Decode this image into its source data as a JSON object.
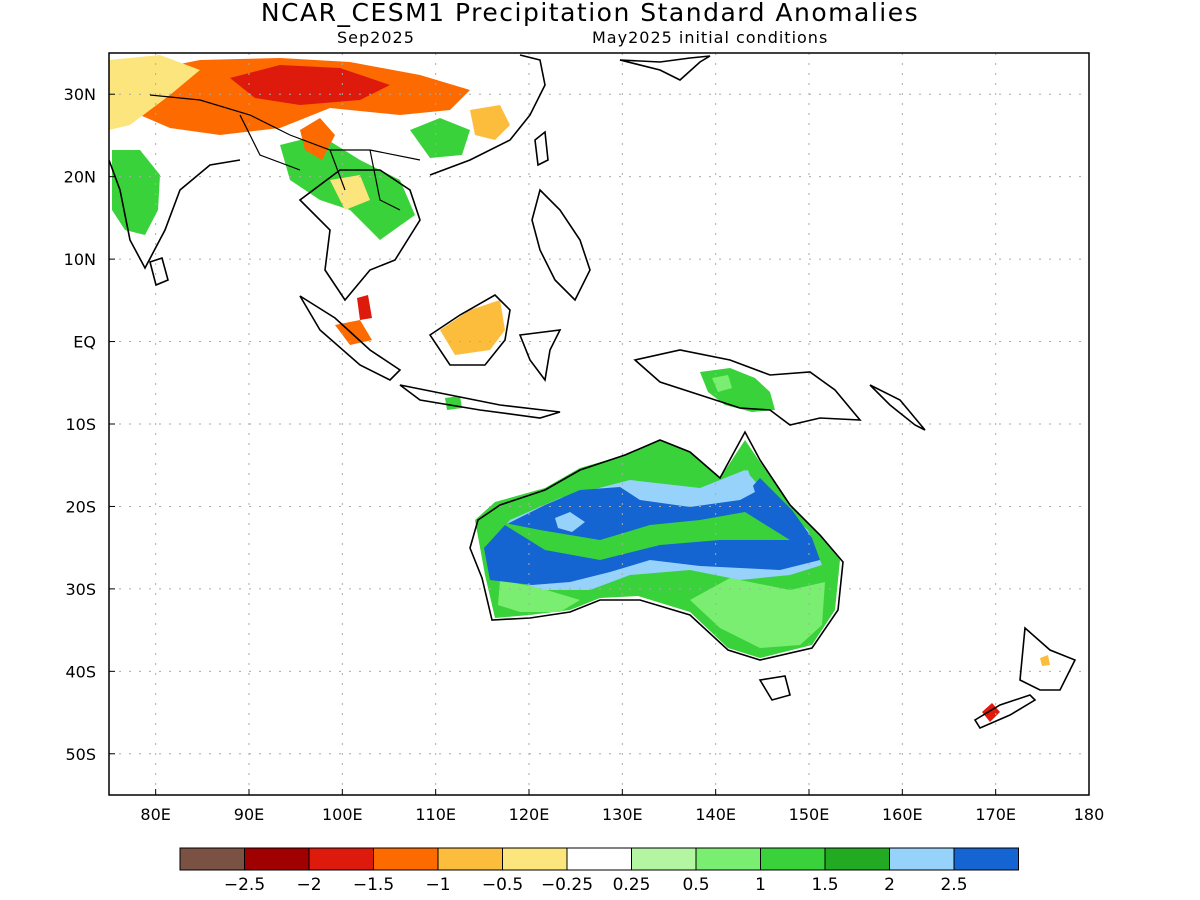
{
  "title": "NCAR_CESM1 Precipitation Standard Anomalies",
  "subtitle_left": "Sep2025",
  "subtitle_right": "May2025 initial conditions",
  "map": {
    "lon_range": [
      75,
      180
    ],
    "lat_range": [
      -55,
      35
    ],
    "lon_ticks": [
      {
        "value": 80,
        "label": "80E"
      },
      {
        "value": 90,
        "label": "90E"
      },
      {
        "value": 100,
        "label": "100E"
      },
      {
        "value": 110,
        "label": "110E"
      },
      {
        "value": 120,
        "label": "120E"
      },
      {
        "value": 130,
        "label": "130E"
      },
      {
        "value": 140,
        "label": "140E"
      },
      {
        "value": 150,
        "label": "150E"
      },
      {
        "value": 160,
        "label": "160E"
      },
      {
        "value": 170,
        "label": "170E"
      },
      {
        "value": 180,
        "label": "180"
      }
    ],
    "lat_ticks": [
      {
        "value": 30,
        "label": "30N"
      },
      {
        "value": 20,
        "label": "20N"
      },
      {
        "value": 10,
        "label": "10N"
      },
      {
        "value": 0,
        "label": "EQ"
      },
      {
        "value": -10,
        "label": "10S"
      },
      {
        "value": -20,
        "label": "20S"
      },
      {
        "value": -30,
        "label": "30S"
      },
      {
        "value": -40,
        "label": "40S"
      },
      {
        "value": -50,
        "label": "50S"
      }
    ],
    "colors": {
      "lt_m2_5": "#7a5244",
      "m2_5": "#a00000",
      "m2": "#dd1a0c",
      "m1_5": "#fd6a00",
      "m1": "#fdbd3c",
      "m0_5": "#fde57d",
      "neutral": "#ffffff",
      "p0_25": "#b4f5a2",
      "p0_5": "#7aee70",
      "p1": "#3ad23a",
      "p1_5": "#22aa22",
      "p2": "#96d2fa",
      "p2_5": "#1464d2"
    }
  },
  "colorbar": {
    "colors": [
      "#7a5244",
      "#a00000",
      "#dd1a0c",
      "#fd6a00",
      "#fdbd3c",
      "#fde57d",
      "#ffffff",
      "#b4f5a2",
      "#7aee70",
      "#3ad23a",
      "#22aa22",
      "#96d2fa",
      "#1464d2"
    ],
    "labels": [
      "−2.5",
      "−2",
      "−1.5",
      "−1",
      "−0.5",
      "−0.25",
      "0.25",
      "0.5",
      "1",
      "1.5",
      "2",
      "2.5"
    ]
  }
}
